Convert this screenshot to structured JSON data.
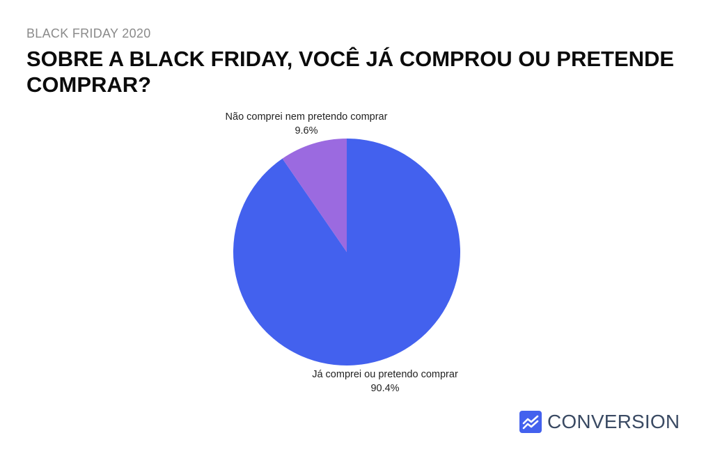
{
  "header": {
    "eyebrow": "BLACK FRIDAY 2020",
    "title": "SOBRE A BLACK FRIDAY, VOCÊ JÁ COMPROU OU PRETENDE COMPRAR?"
  },
  "chart_data": {
    "type": "pie",
    "slices": [
      {
        "label": "Já comprei ou pretendo comprar",
        "value": 90.4,
        "value_label": "90.4%",
        "color": "#4361ee"
      },
      {
        "label": "Não comprei nem pretendo comprar",
        "value": 9.6,
        "value_label": "9.6%",
        "color": "#9b6ae0"
      }
    ]
  },
  "brand": {
    "name": "CONVERSION",
    "icon": "trend-chart-icon",
    "icon_color": "#4361ee"
  }
}
